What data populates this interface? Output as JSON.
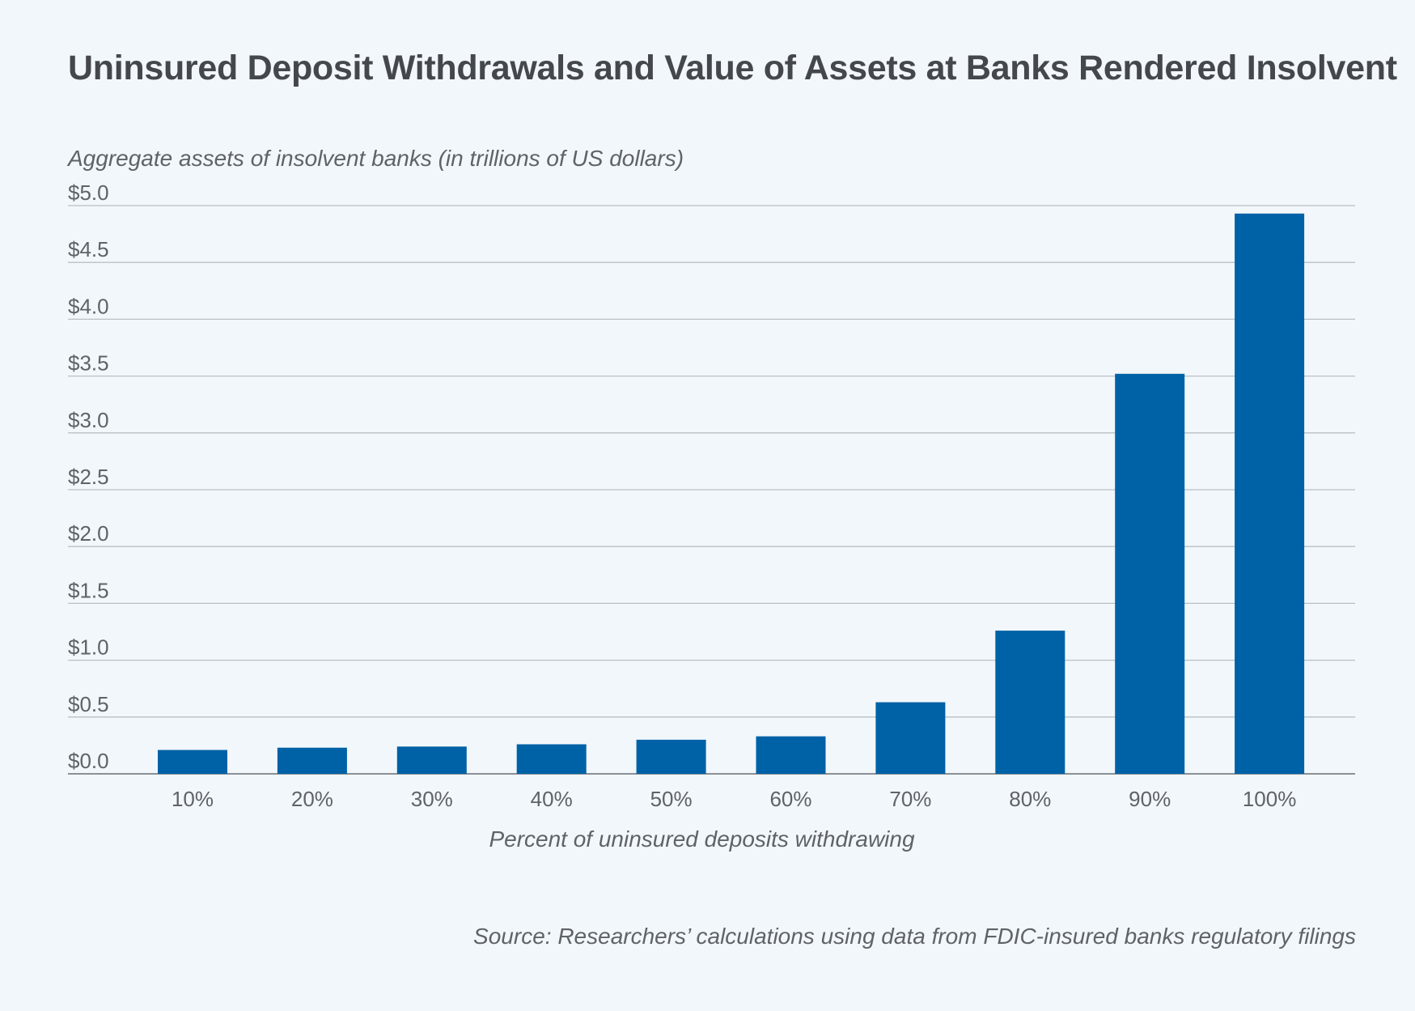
{
  "chart_data": {
    "type": "bar",
    "title": "Uninsured Deposit Withdrawals and Value of Assets at Banks Rendered Insolvent",
    "ylabel": "Aggregate assets of insolvent banks (in trillions of US dollars)",
    "xlabel": "Percent of uninsured deposits withdrawing",
    "source": "Source: Researchers’ calculations using data from FDIC-insured banks regulatory filings",
    "categories": [
      "10%",
      "20%",
      "30%",
      "40%",
      "50%",
      "60%",
      "70%",
      "80%",
      "90%",
      "100%"
    ],
    "values": [
      0.21,
      0.23,
      0.24,
      0.26,
      0.3,
      0.33,
      0.63,
      1.26,
      3.52,
      4.93
    ],
    "ylim": [
      0,
      5.0
    ],
    "yticks": [
      0,
      0.5,
      1.0,
      1.5,
      2.0,
      2.5,
      3.0,
      3.5,
      4.0,
      4.5,
      5.0
    ],
    "ytick_labels": [
      "$0.0",
      "$0.5",
      "$1.0",
      "$1.5",
      "$2.0",
      "$2.5",
      "$3.0",
      "$3.5",
      "$4.0",
      "$4.5",
      "$5.0"
    ],
    "grid": true,
    "colors": {
      "bar": "#0062a6",
      "grid": "#b9c0c6",
      "axis": "#8a9096",
      "background": "#f2f7fb"
    }
  }
}
